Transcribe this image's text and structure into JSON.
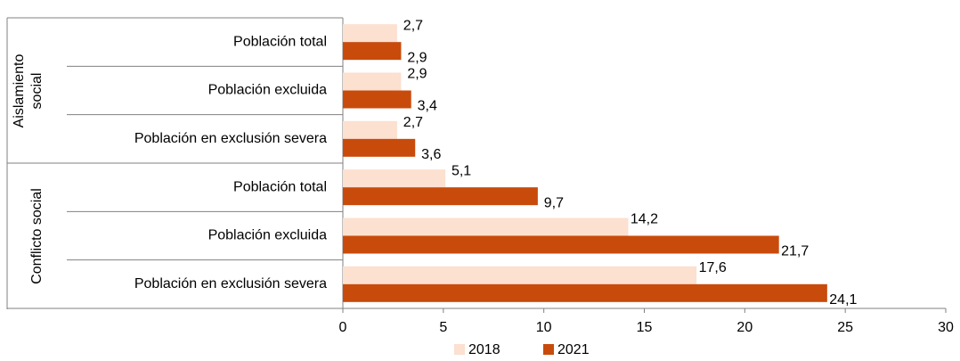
{
  "chart_data": {
    "type": "bar",
    "orientation": "horizontal",
    "category_groups": [
      {
        "name": "Aislamiento social",
        "categories": [
          "Población total",
          "Población excluida",
          "Población en exclusión severa"
        ]
      },
      {
        "name": "Conflicto social",
        "categories": [
          "Población total",
          "Población excluida",
          "Población en exclusión severa"
        ]
      }
    ],
    "series": [
      {
        "name": "2018",
        "color": "#fce0d0",
        "values": [
          2.7,
          2.9,
          2.7,
          5.1,
          14.2,
          17.6
        ],
        "value_labels": [
          "2,7",
          "2,9",
          "2,7",
          "5,1",
          "14,2",
          "17,6"
        ]
      },
      {
        "name": "2021",
        "color": "#c84b0c",
        "values": [
          2.9,
          3.4,
          3.6,
          9.7,
          21.7,
          24.1
        ],
        "value_labels": [
          "2,9",
          "3,4",
          "3,6",
          "9,7",
          "21,7",
          "24,1"
        ]
      }
    ],
    "xlim": [
      0,
      30
    ],
    "xticks": [
      0,
      5,
      10,
      15,
      20,
      25,
      30
    ],
    "grid": false,
    "legend": "bottom"
  }
}
